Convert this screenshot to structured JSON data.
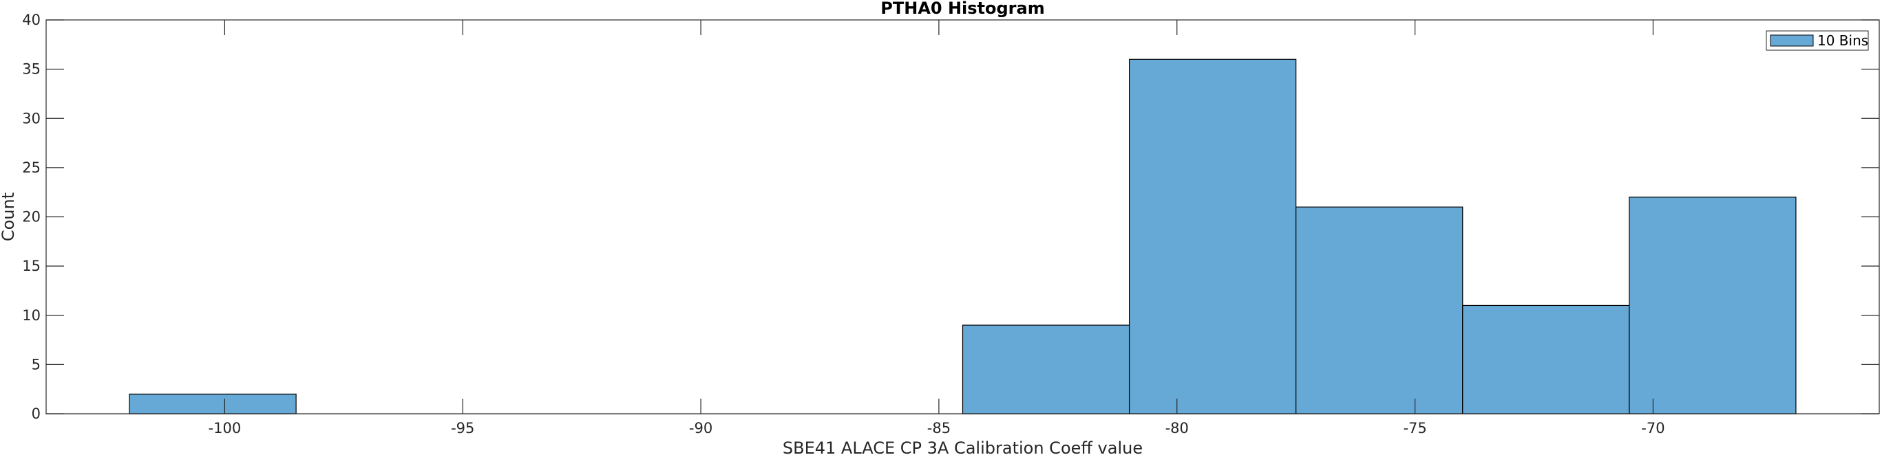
{
  "chart_data": {
    "type": "bar",
    "subtype": "histogram",
    "title": "PTHA0 Histogram",
    "xlabel": "SBE41 ALACE CP 3A Calibration Coeff value",
    "ylabel": "Count",
    "xlim": [
      -103.75,
      -65.25
    ],
    "ylim": [
      0,
      40
    ],
    "xticks": [
      -100,
      -95,
      -90,
      -85,
      -80,
      -75,
      -70
    ],
    "yticks": [
      0,
      5,
      10,
      15,
      20,
      25,
      30,
      35,
      40
    ],
    "bin_edges": [
      -102.0,
      -98.5,
      -95.0,
      -91.5,
      -88.0,
      -84.5,
      -81.0,
      -77.5,
      -74.0,
      -70.5,
      -67.0
    ],
    "counts": [
      2,
      0,
      0,
      0,
      0,
      9,
      36,
      21,
      11,
      22
    ],
    "legend": [
      "10 Bins"
    ],
    "legend_position": "top-right",
    "bar_color": "#66a9d6",
    "edge_color": "#000000",
    "grid": false
  }
}
